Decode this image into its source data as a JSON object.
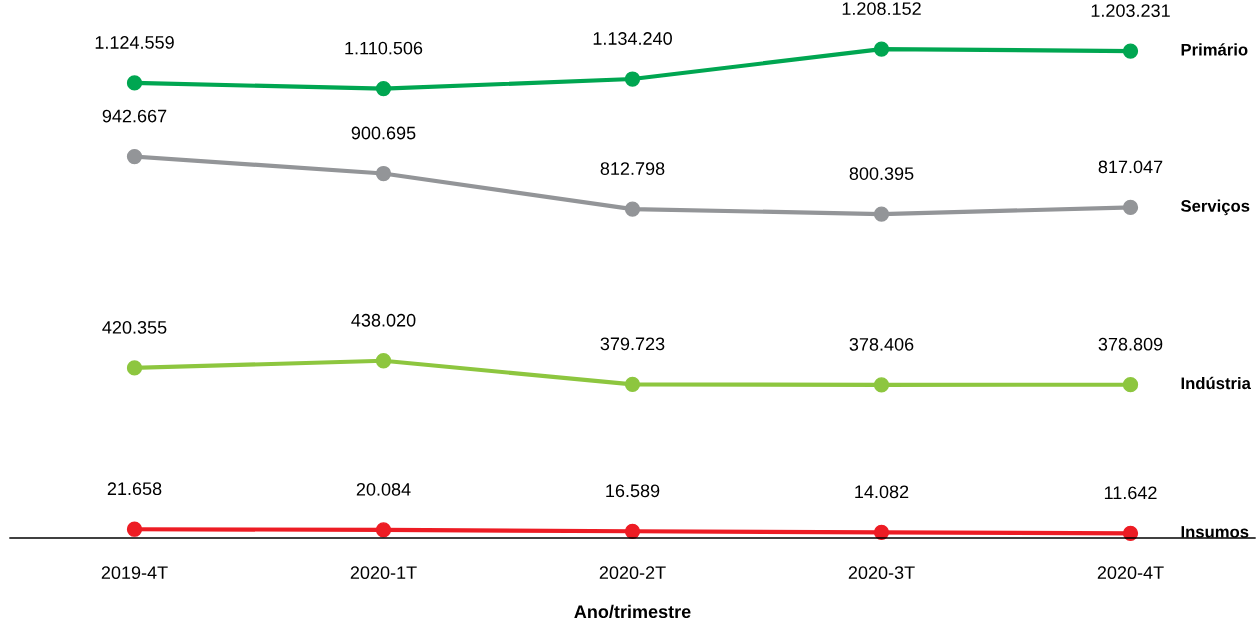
{
  "chart_data": {
    "type": "line",
    "xlabel": "Ano/trimestre",
    "categories": [
      "2019-4T",
      "2020-1T",
      "2020-2T",
      "2020-3T",
      "2020-4T"
    ],
    "series": [
      {
        "name": "Primário",
        "color": "#00a651",
        "values": [
          1124559,
          1110506,
          1134240,
          1208152,
          1203231
        ],
        "value_labels": [
          "1.124.559",
          "1.110.506",
          "1.134.240",
          "1.208.152",
          "1.203.231"
        ]
      },
      {
        "name": "Serviços",
        "color": "#939598",
        "values": [
          942667,
          900695,
          812798,
          800395,
          817047
        ],
        "value_labels": [
          "942.667",
          "900.695",
          "812.798",
          "800.395",
          "817.047"
        ]
      },
      {
        "name": "Indústria",
        "color": "#8dc63f",
        "values": [
          420355,
          438020,
          379723,
          378406,
          378809
        ],
        "value_labels": [
          "420.355",
          "438.020",
          "379.723",
          "378.406",
          "378.809"
        ]
      },
      {
        "name": "Insumos",
        "color": "#ed1c24",
        "values": [
          21658,
          20084,
          16589,
          14082,
          11642
        ],
        "value_labels": [
          "21.658",
          "20.084",
          "16.589",
          "14.082",
          "11.642"
        ]
      }
    ],
    "tick_labels": "x",
    "grid": false,
    "legend": false,
    "marker": "circle",
    "line_style": "solid"
  }
}
